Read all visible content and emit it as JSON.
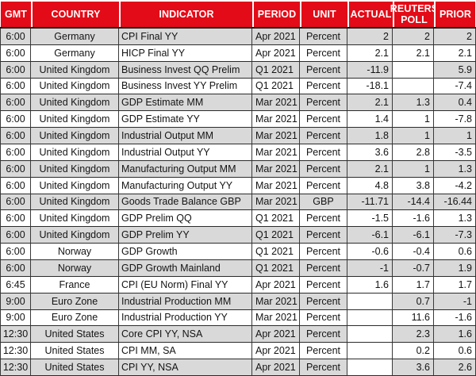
{
  "chart_data": {
    "type": "table",
    "columns": [
      "GMT",
      "COUNTRY",
      "INDICATOR",
      "PERIOD",
      "UNIT",
      "ACTUAL",
      "REUTERS POLL",
      "PRIOR"
    ],
    "rows": [
      [
        "6:00",
        "Germany",
        "CPI Final YY",
        "Apr 2021",
        "Percent",
        "2",
        "2",
        "2"
      ],
      [
        "6:00",
        "Germany",
        "HICP Final YY",
        "Apr 2021",
        "Percent",
        "2.1",
        "2.1",
        "2.1"
      ],
      [
        "6:00",
        "United Kingdom",
        "Business Invest QQ Prelim",
        "Q1 2021",
        "Percent",
        "-11.9",
        "",
        "5.9"
      ],
      [
        "6:00",
        "United Kingdom",
        "Business Invest YY Prelim",
        "Q1 2021",
        "Percent",
        "-18.1",
        "",
        "-7.4"
      ],
      [
        "6:00",
        "United Kingdom",
        "GDP Estimate MM",
        "Mar 2021",
        "Percent",
        "2.1",
        "1.3",
        "0.4"
      ],
      [
        "6:00",
        "United Kingdom",
        "GDP Estimate YY",
        "Mar 2021",
        "Percent",
        "1.4",
        "1",
        "-7.8"
      ],
      [
        "6:00",
        "United Kingdom",
        "Industrial Output MM",
        "Mar 2021",
        "Percent",
        "1.8",
        "1",
        "1"
      ],
      [
        "6:00",
        "United Kingdom",
        "Industrial Output YY",
        "Mar 2021",
        "Percent",
        "3.6",
        "2.8",
        "-3.5"
      ],
      [
        "6:00",
        "United Kingdom",
        "Manufacturing Output MM",
        "Mar 2021",
        "Percent",
        "2.1",
        "1",
        "1.3"
      ],
      [
        "6:00",
        "United Kingdom",
        "Manufacturing Output YY",
        "Mar 2021",
        "Percent",
        "4.8",
        "3.8",
        "-4.2"
      ],
      [
        "6:00",
        "United Kingdom",
        "Goods Trade Balance GBP",
        "Mar 2021",
        "GBP",
        "-11.71",
        "-14.4",
        "-16.44"
      ],
      [
        "6:00",
        "United Kingdom",
        "GDP Prelim QQ",
        "Q1 2021",
        "Percent",
        "-1.5",
        "-1.6",
        "1.3"
      ],
      [
        "6:00",
        "United Kingdom",
        "GDP Prelim YY",
        "Q1 2021",
        "Percent",
        "-6.1",
        "-6.1",
        "-7.3"
      ],
      [
        "6:00",
        "Norway",
        "GDP Growth",
        "Q1 2021",
        "Percent",
        "-0.6",
        "-0.4",
        "0.6"
      ],
      [
        "6:00",
        "Norway",
        "GDP Growth Mainland",
        "Q1 2021",
        "Percent",
        "-1",
        "-0.7",
        "1.9"
      ],
      [
        "6:45",
        "France",
        "CPI (EU Norm) Final YY",
        "Apr 2021",
        "Percent",
        "1.6",
        "1.7",
        "1.7"
      ],
      [
        "9:00",
        "Euro Zone",
        "Industrial Production MM",
        "Mar 2021",
        "Percent",
        "",
        "0.7",
        "-1"
      ],
      [
        "9:00",
        "Euro Zone",
        "Industrial Production YY",
        "Mar 2021",
        "Percent",
        "",
        "11.6",
        "-1.6"
      ],
      [
        "12:30",
        "United States",
        "Core CPI YY, NSA",
        "Apr 2021",
        "Percent",
        "",
        "2.3",
        "1.6"
      ],
      [
        "12:30",
        "United States",
        "CPI MM, SA",
        "Apr 2021",
        "Percent",
        "",
        "0.2",
        "0.6"
      ],
      [
        "12:30",
        "United States",
        "CPI YY, NSA",
        "Apr 2021",
        "Percent",
        "",
        "3.6",
        "2.6"
      ]
    ],
    "layout": {
      "header_background": "#e30b17",
      "header_text_color": "#ffffff",
      "alt_row_background": "#d9d9d9",
      "row_background": "#ffffff",
      "grid_color": "#3a3a3a",
      "note": "empty cells render white even on alt (gray) rows"
    }
  }
}
